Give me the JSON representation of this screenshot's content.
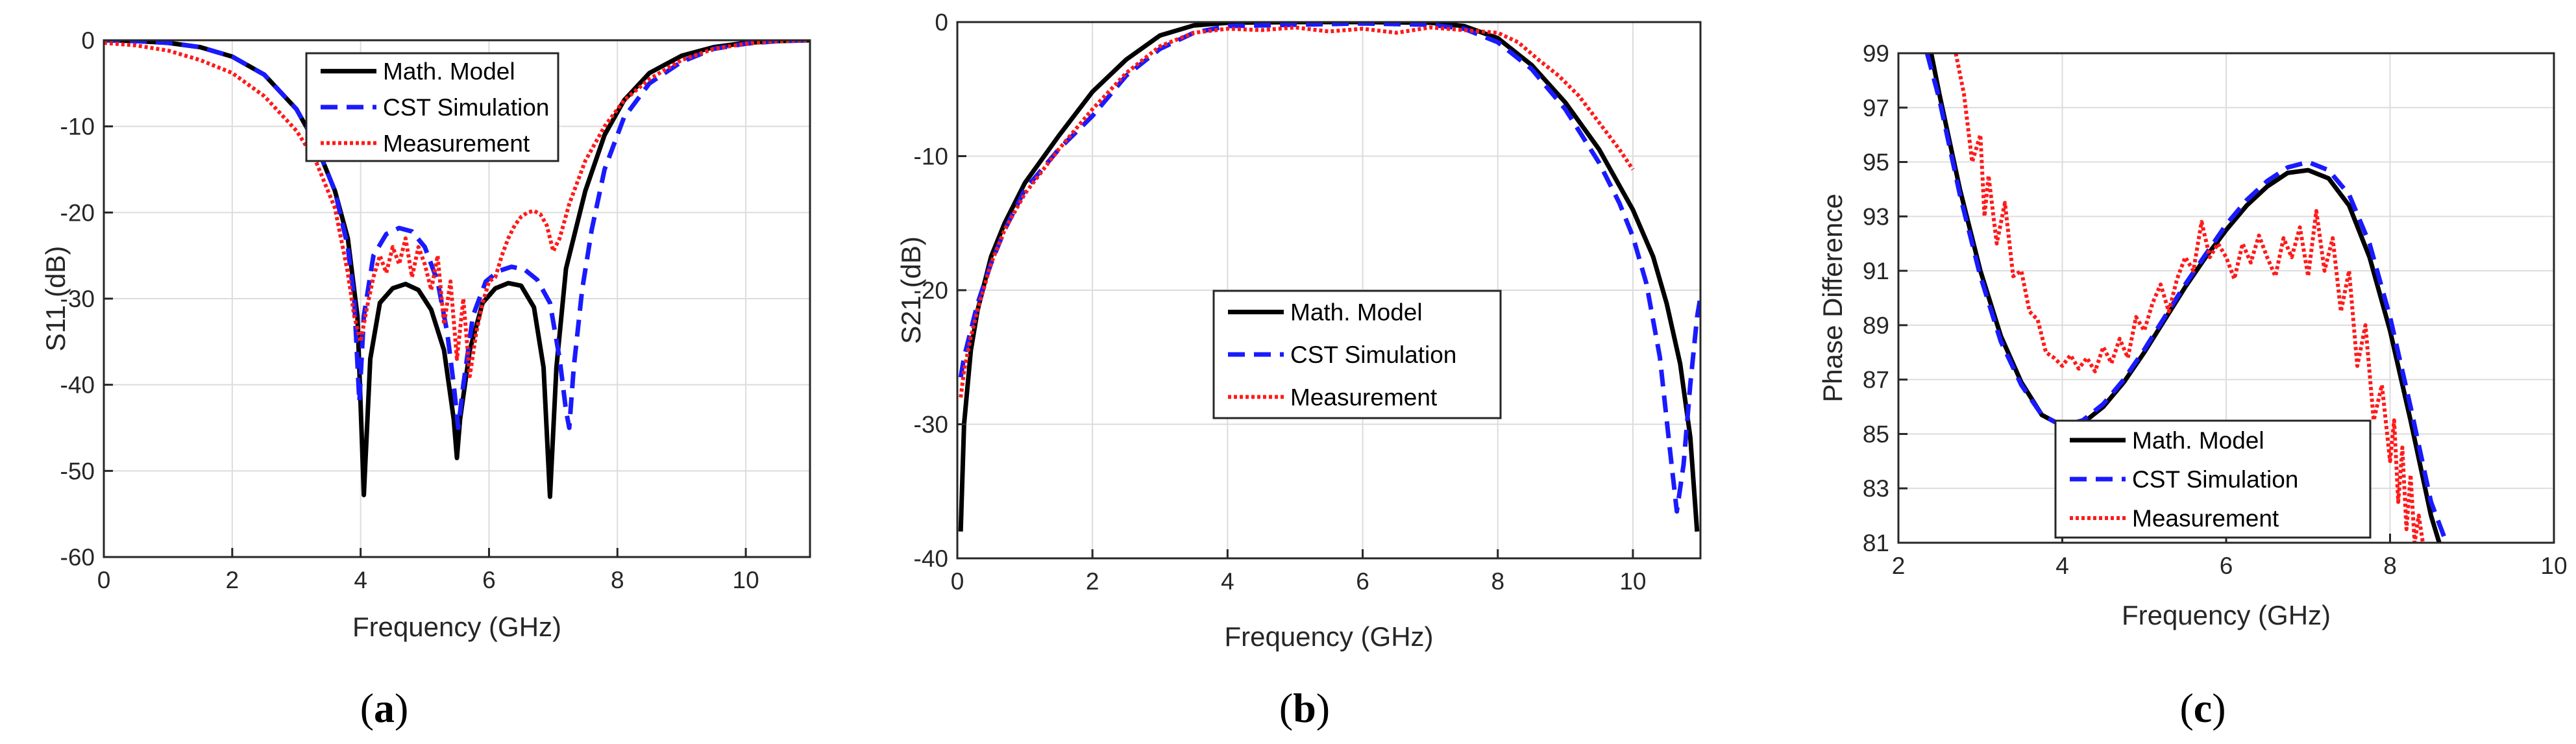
{
  "colors": {
    "model": "#000000",
    "simulation": "#1a1aff",
    "measurement": "#ff1a1a",
    "grid": "#dcdcdc",
    "axis": "#262626"
  },
  "chart_data": [
    {
      "type": "line",
      "caption": {
        "open": "(",
        "letter": "a",
        "close": ")"
      },
      "xlabel": "Frequency (GHz)",
      "ylabel": "S11 (dB)",
      "xlim": [
        0,
        11
      ],
      "ylim": [
        -60,
        0
      ],
      "xticks": [
        0,
        2,
        4,
        6,
        8,
        10
      ],
      "yticks": [
        -60,
        -50,
        -40,
        -30,
        -20,
        -10,
        0
      ],
      "grid": true,
      "legend_position": "top-center",
      "series": [
        {
          "name": "Math. Model",
          "style": "solid",
          "color_key": "model",
          "x": [
            0,
            0.5,
            1,
            1.5,
            2,
            2.5,
            3,
            3.3,
            3.6,
            3.8,
            3.95,
            4.05,
            4.15,
            4.3,
            4.5,
            4.7,
            4.9,
            5.1,
            5.3,
            5.45,
            5.5,
            5.55,
            5.7,
            5.9,
            6.1,
            6.3,
            6.5,
            6.7,
            6.85,
            6.95,
            7.05,
            7.2,
            7.5,
            7.8,
            8.1,
            8.5,
            9,
            9.5,
            10,
            10.5,
            11
          ],
          "y": [
            0,
            -0.1,
            -0.3,
            -0.8,
            -1.9,
            -4,
            -8,
            -12,
            -17.5,
            -23,
            -32,
            -52.8,
            -37,
            -30.5,
            -28.8,
            -28.3,
            -29,
            -31.3,
            -36,
            -44,
            -48.5,
            -44,
            -36,
            -30.5,
            -28.8,
            -28.2,
            -28.5,
            -31,
            -38,
            -53,
            -38,
            -26.5,
            -17.5,
            -11,
            -7,
            -3.8,
            -1.8,
            -0.8,
            -0.3,
            -0.1,
            0
          ]
        },
        {
          "name": "CST Simulation",
          "style": "dashed",
          "color_key": "simulation",
          "x": [
            0,
            0.5,
            1,
            1.5,
            2,
            2.5,
            3,
            3.3,
            3.6,
            3.8,
            3.9,
            3.98,
            4.05,
            4.2,
            4.4,
            4.6,
            4.8,
            5,
            5.2,
            5.35,
            5.45,
            5.52,
            5.6,
            5.75,
            5.95,
            6.15,
            6.35,
            6.55,
            6.75,
            6.95,
            7.1,
            7.2,
            7.25,
            7.32,
            7.45,
            7.6,
            7.8,
            8.1,
            8.5,
            9,
            9.5,
            10,
            10.5,
            11
          ],
          "y": [
            0,
            -0.1,
            -0.3,
            -0.8,
            -1.9,
            -4,
            -8,
            -12,
            -17.5,
            -24,
            -30,
            -42,
            -32,
            -25,
            -22.5,
            -21.8,
            -22.2,
            -24,
            -28,
            -34,
            -40,
            -45,
            -40,
            -32,
            -28,
            -26.8,
            -26.3,
            -26.6,
            -27.8,
            -30.5,
            -37,
            -43,
            -45,
            -38,
            -29,
            -22,
            -15,
            -9,
            -5,
            -2.5,
            -1,
            -0.4,
            -0.1,
            0
          ]
        },
        {
          "name": "Measurement",
          "style": "dotted",
          "color_key": "measurement",
          "x": [
            0,
            0.5,
            1,
            1.5,
            2,
            2.5,
            3,
            3.3,
            3.6,
            3.8,
            3.9,
            4,
            4.1,
            4.2,
            4.3,
            4.4,
            4.5,
            4.6,
            4.7,
            4.8,
            4.9,
            5,
            5.1,
            5.2,
            5.3,
            5.4,
            5.5,
            5.6,
            5.7,
            5.8,
            5.9,
            6,
            6.1,
            6.2,
            6.3,
            6.4,
            6.5,
            6.6,
            6.7,
            6.8,
            6.9,
            7,
            7.1,
            7.25,
            7.5,
            7.8,
            8.1,
            8.5,
            9,
            9.5,
            10,
            10.5,
            11
          ],
          "y": [
            -0.3,
            -0.6,
            -1.2,
            -2.3,
            -3.8,
            -6.5,
            -10.5,
            -14,
            -19.5,
            -27,
            -32,
            -35,
            -31,
            -27.5,
            -25,
            -27,
            -24,
            -26,
            -23,
            -27.5,
            -24,
            -26,
            -29,
            -25,
            -33,
            -28,
            -37,
            -30,
            -39,
            -34,
            -30.5,
            -28,
            -27.5,
            -25,
            -23,
            -21.5,
            -20.5,
            -20,
            -19.8,
            -20.2,
            -21.5,
            -24.5,
            -23,
            -19,
            -14,
            -10,
            -7,
            -4.5,
            -2.3,
            -1,
            -0.4,
            -0.1,
            0
          ]
        }
      ]
    },
    {
      "type": "line",
      "caption": {
        "open": "(",
        "letter": "b",
        "close": ")"
      },
      "xlabel": "Frequency (GHz)",
      "ylabel": "S21 (dB)",
      "xlim": [
        0,
        11
      ],
      "ylim": [
        -40,
        0
      ],
      "xticks": [
        0,
        2,
        4,
        6,
        8,
        10
      ],
      "yticks": [
        -40,
        -30,
        -20,
        -10,
        0
      ],
      "grid": true,
      "legend_position": "center",
      "series": [
        {
          "name": "Math. Model",
          "style": "solid",
          "color_key": "model",
          "x": [
            0.05,
            0.1,
            0.2,
            0.3,
            0.5,
            0.7,
            1,
            1.5,
            2,
            2.5,
            3,
            3.5,
            4,
            5,
            6,
            7,
            7.5,
            8,
            8.5,
            9,
            9.5,
            10,
            10.3,
            10.5,
            10.7,
            10.85,
            10.95
          ],
          "y": [
            -38,
            -30,
            -24.5,
            -21.5,
            -17.5,
            -15,
            -12,
            -8.5,
            -5.2,
            -2.8,
            -1,
            -0.25,
            -0.05,
            0,
            0,
            -0.05,
            -0.3,
            -1.2,
            -3.2,
            -6,
            -9.5,
            -14,
            -17.5,
            -21,
            -25.5,
            -31,
            -38
          ]
        },
        {
          "name": "CST Simulation",
          "style": "dashed",
          "color_key": "simulation",
          "x": [
            0.05,
            0.1,
            0.2,
            0.3,
            0.5,
            0.7,
            1,
            1.5,
            2,
            2.5,
            3,
            3.5,
            4,
            5,
            6,
            7,
            7.5,
            8,
            8.5,
            9,
            9.5,
            9.8,
            10,
            10.2,
            10.4,
            10.55,
            10.65,
            10.75,
            10.85,
            10.95,
            11
          ],
          "y": [
            -26.5,
            -25,
            -23,
            -21,
            -18,
            -15.5,
            -12.5,
            -9.5,
            -7,
            -4,
            -2,
            -0.8,
            -0.3,
            -0.2,
            -0.1,
            -0.2,
            -0.5,
            -1.5,
            -3.5,
            -6.5,
            -10.5,
            -13.5,
            -16,
            -19.5,
            -25,
            -32,
            -36.5,
            -33,
            -27,
            -22,
            -20.5
          ]
        },
        {
          "name": "Measurement",
          "style": "dotted",
          "color_key": "measurement",
          "x": [
            0.05,
            0.1,
            0.2,
            0.3,
            0.5,
            0.7,
            1,
            1.5,
            2,
            2.5,
            3,
            3.5,
            4,
            4.5,
            5,
            5.5,
            6,
            6.5,
            7,
            7.5,
            8,
            8.3,
            8.6,
            8.9,
            9.2,
            9.5,
            9.8,
            10
          ],
          "y": [
            -28,
            -26,
            -23.5,
            -21.5,
            -18,
            -15.5,
            -12.8,
            -9.5,
            -6.5,
            -3.8,
            -1.8,
            -0.8,
            -0.5,
            -0.6,
            -0.4,
            -0.7,
            -0.5,
            -0.8,
            -0.4,
            -0.6,
            -0.8,
            -1.5,
            -2.8,
            -4,
            -5.5,
            -7.5,
            -9.5,
            -11
          ]
        }
      ]
    },
    {
      "type": "line",
      "caption": {
        "open": "(",
        "letter": "c",
        "close": ")"
      },
      "xlabel": "Frequency (GHz)",
      "ylabel": "Phase Difference",
      "xlim": [
        2,
        10
      ],
      "ylim": [
        81,
        99
      ],
      "xticks": [
        2,
        4,
        6,
        8,
        10
      ],
      "yticks": [
        81,
        83,
        85,
        87,
        89,
        91,
        93,
        95,
        97,
        99
      ],
      "grid": true,
      "legend_position": "bottom-center",
      "series": [
        {
          "name": "Math. Model",
          "style": "solid",
          "color_key": "model",
          "x": [
            2.4,
            2.5,
            2.75,
            3,
            3.25,
            3.5,
            3.75,
            4,
            4.25,
            4.5,
            4.75,
            5,
            5.25,
            5.5,
            5.75,
            6,
            6.25,
            6.5,
            6.75,
            7,
            7.25,
            7.5,
            7.75,
            8,
            8.25,
            8.5,
            8.65
          ],
          "y": [
            99,
            97.5,
            94,
            91,
            88.6,
            86.9,
            85.7,
            85.3,
            85.4,
            86,
            86.9,
            88,
            89.2,
            90.4,
            91.5,
            92.5,
            93.4,
            94.1,
            94.6,
            94.7,
            94.4,
            93.4,
            91.5,
            88.8,
            85.5,
            82,
            80.5
          ]
        },
        {
          "name": "CST Simulation",
          "style": "dashed",
          "color_key": "simulation",
          "x": [
            2.35,
            2.5,
            2.75,
            3,
            3.25,
            3.5,
            3.75,
            4,
            4.25,
            4.5,
            4.75,
            5,
            5.25,
            5.5,
            5.75,
            6,
            6.25,
            6.5,
            6.75,
            7,
            7.25,
            7.5,
            7.75,
            8,
            8.25,
            8.5,
            8.75
          ],
          "y": [
            99,
            97.3,
            93.8,
            90.8,
            88.4,
            86.8,
            85.7,
            85.3,
            85.5,
            86.1,
            87,
            88.1,
            89.3,
            90.5,
            91.6,
            92.7,
            93.6,
            94.3,
            94.8,
            95,
            94.7,
            93.8,
            92,
            89.3,
            86,
            82.5,
            80.5
          ]
        },
        {
          "name": "Measurement",
          "style": "dotted",
          "color_key": "measurement",
          "x": [
            2.7,
            2.8,
            2.9,
            3,
            3.05,
            3.1,
            3.2,
            3.3,
            3.4,
            3.5,
            3.6,
            3.7,
            3.8,
            3.9,
            4,
            4.1,
            4.2,
            4.3,
            4.4,
            4.5,
            4.6,
            4.7,
            4.8,
            4.9,
            5,
            5.1,
            5.2,
            5.3,
            5.4,
            5.5,
            5.6,
            5.7,
            5.8,
            5.9,
            6,
            6.1,
            6.2,
            6.3,
            6.4,
            6.5,
            6.6,
            6.7,
            6.8,
            6.9,
            7,
            7.1,
            7.2,
            7.3,
            7.4,
            7.5,
            7.6,
            7.7,
            7.8,
            7.9,
            8,
            8.05,
            8.1,
            8.15,
            8.2,
            8.25,
            8.3,
            8.35,
            8.4
          ],
          "y": [
            99,
            97.5,
            95,
            96,
            93,
            94.5,
            92,
            93.5,
            90.8,
            91,
            89.5,
            89.2,
            88,
            87.8,
            87.5,
            87.9,
            87.4,
            87.8,
            87.3,
            88.2,
            87.6,
            88.5,
            87.8,
            89.3,
            88.8,
            89.8,
            90.5,
            89.5,
            90.7,
            91.5,
            91,
            92.8,
            91.5,
            92,
            91.5,
            90.7,
            92,
            91.3,
            92.3,
            91.5,
            90.8,
            92.2,
            91.5,
            92.6,
            90.8,
            93.2,
            91,
            92.2,
            89.5,
            91,
            87.5,
            89,
            85.5,
            86.8,
            84,
            85.5,
            82.5,
            84.5,
            81.5,
            83.5,
            81,
            82,
            81
          ]
        }
      ]
    }
  ]
}
